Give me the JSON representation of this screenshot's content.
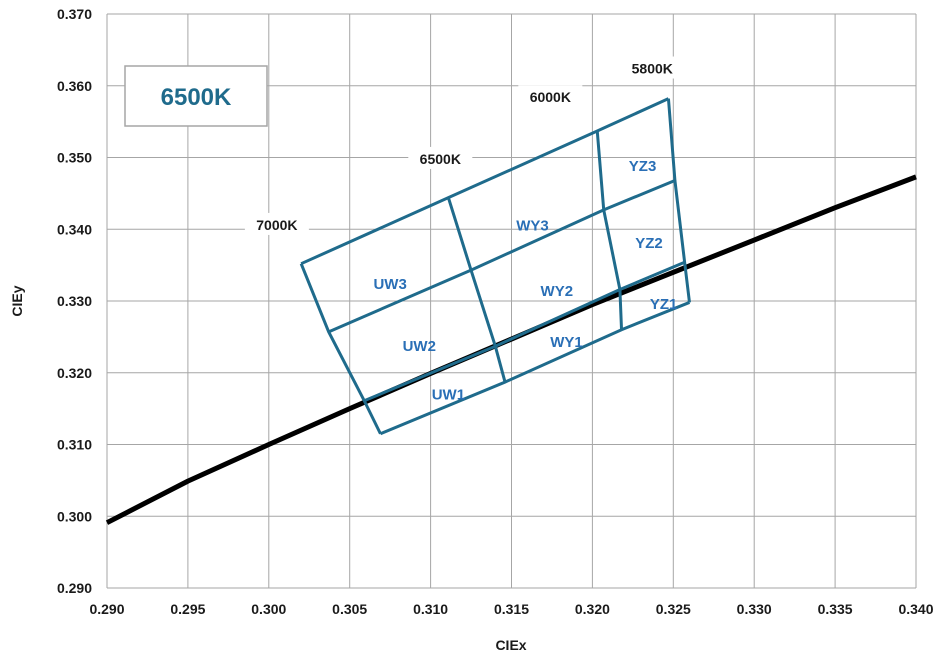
{
  "chart_data": {
    "type": "scatter",
    "title": "6500K",
    "xlabel": "CIEx",
    "ylabel": "CIEy",
    "xlim": [
      0.29,
      0.34
    ],
    "ylim": [
      0.29,
      0.37
    ],
    "grid": true,
    "x_ticks": [
      "0.290",
      "0.295",
      "0.300",
      "0.305",
      "0.310",
      "0.315",
      "0.320",
      "0.325",
      "0.330",
      "0.335",
      "0.340"
    ],
    "y_ticks": [
      "0.290",
      "0.300",
      "0.310",
      "0.320",
      "0.330",
      "0.340",
      "0.350",
      "0.360",
      "0.370"
    ],
    "blackbody_locus": {
      "x": [
        0.29,
        0.295,
        0.3,
        0.305,
        0.31,
        0.315,
        0.32,
        0.325,
        0.33,
        0.335,
        0.34
      ],
      "y": [
        0.2991,
        0.3049,
        0.31,
        0.315,
        0.3199,
        0.3247,
        0.3295,
        0.334,
        0.3385,
        0.343,
        0.3473
      ]
    },
    "bin_grid": {
      "nodes": [
        [
          [
            0.3069,
            0.3115
          ],
          [
            0.3146,
            0.3187
          ],
          [
            0.3218,
            0.326
          ],
          [
            0.326,
            0.3298
          ]
        ],
        [
          [
            0.3059,
            0.3161
          ],
          [
            0.314,
            0.3237
          ],
          [
            0.3217,
            0.3316
          ],
          [
            0.3257,
            0.3354
          ]
        ],
        [
          [
            0.3037,
            0.3257
          ],
          [
            0.3125,
            0.3343
          ],
          [
            0.3207,
            0.3427
          ],
          [
            0.3251,
            0.3468
          ]
        ],
        [
          [
            0.302,
            0.3352
          ],
          [
            0.3111,
            0.3444
          ],
          [
            0.3203,
            0.3537
          ],
          [
            0.3247,
            0.3582
          ]
        ]
      ]
    },
    "bins": [
      {
        "label": "UW1",
        "x": 0.3111,
        "y": 0.317
      },
      {
        "label": "UW2",
        "x": 0.3093,
        "y": 0.3237
      },
      {
        "label": "UW3",
        "x": 0.3075,
        "y": 0.3324
      },
      {
        "label": "WY1",
        "x": 0.3184,
        "y": 0.3243
      },
      {
        "label": "WY2",
        "x": 0.3178,
        "y": 0.3314
      },
      {
        "label": "WY3",
        "x": 0.3163,
        "y": 0.3405
      },
      {
        "label": "YZ1",
        "x": 0.3244,
        "y": 0.3296
      },
      {
        "label": "YZ2",
        "x": 0.3235,
        "y": 0.3381
      },
      {
        "label": "YZ3",
        "x": 0.3231,
        "y": 0.3488
      }
    ],
    "cct_labels": [
      {
        "label": "7000K",
        "x": 0.3005,
        "y": 0.3406
      },
      {
        "label": "6500K",
        "x": 0.3106,
        "y": 0.3498
      },
      {
        "label": "6000K",
        "x": 0.3174,
        "y": 0.3584
      },
      {
        "label": "5800K",
        "x": 0.3237,
        "y": 0.3624
      }
    ],
    "colors": {
      "locus": "#000000",
      "bin_grid": "#1f6b8c",
      "bin_label": "#2a6fb6",
      "gridline": "#a6a6a6"
    }
  }
}
